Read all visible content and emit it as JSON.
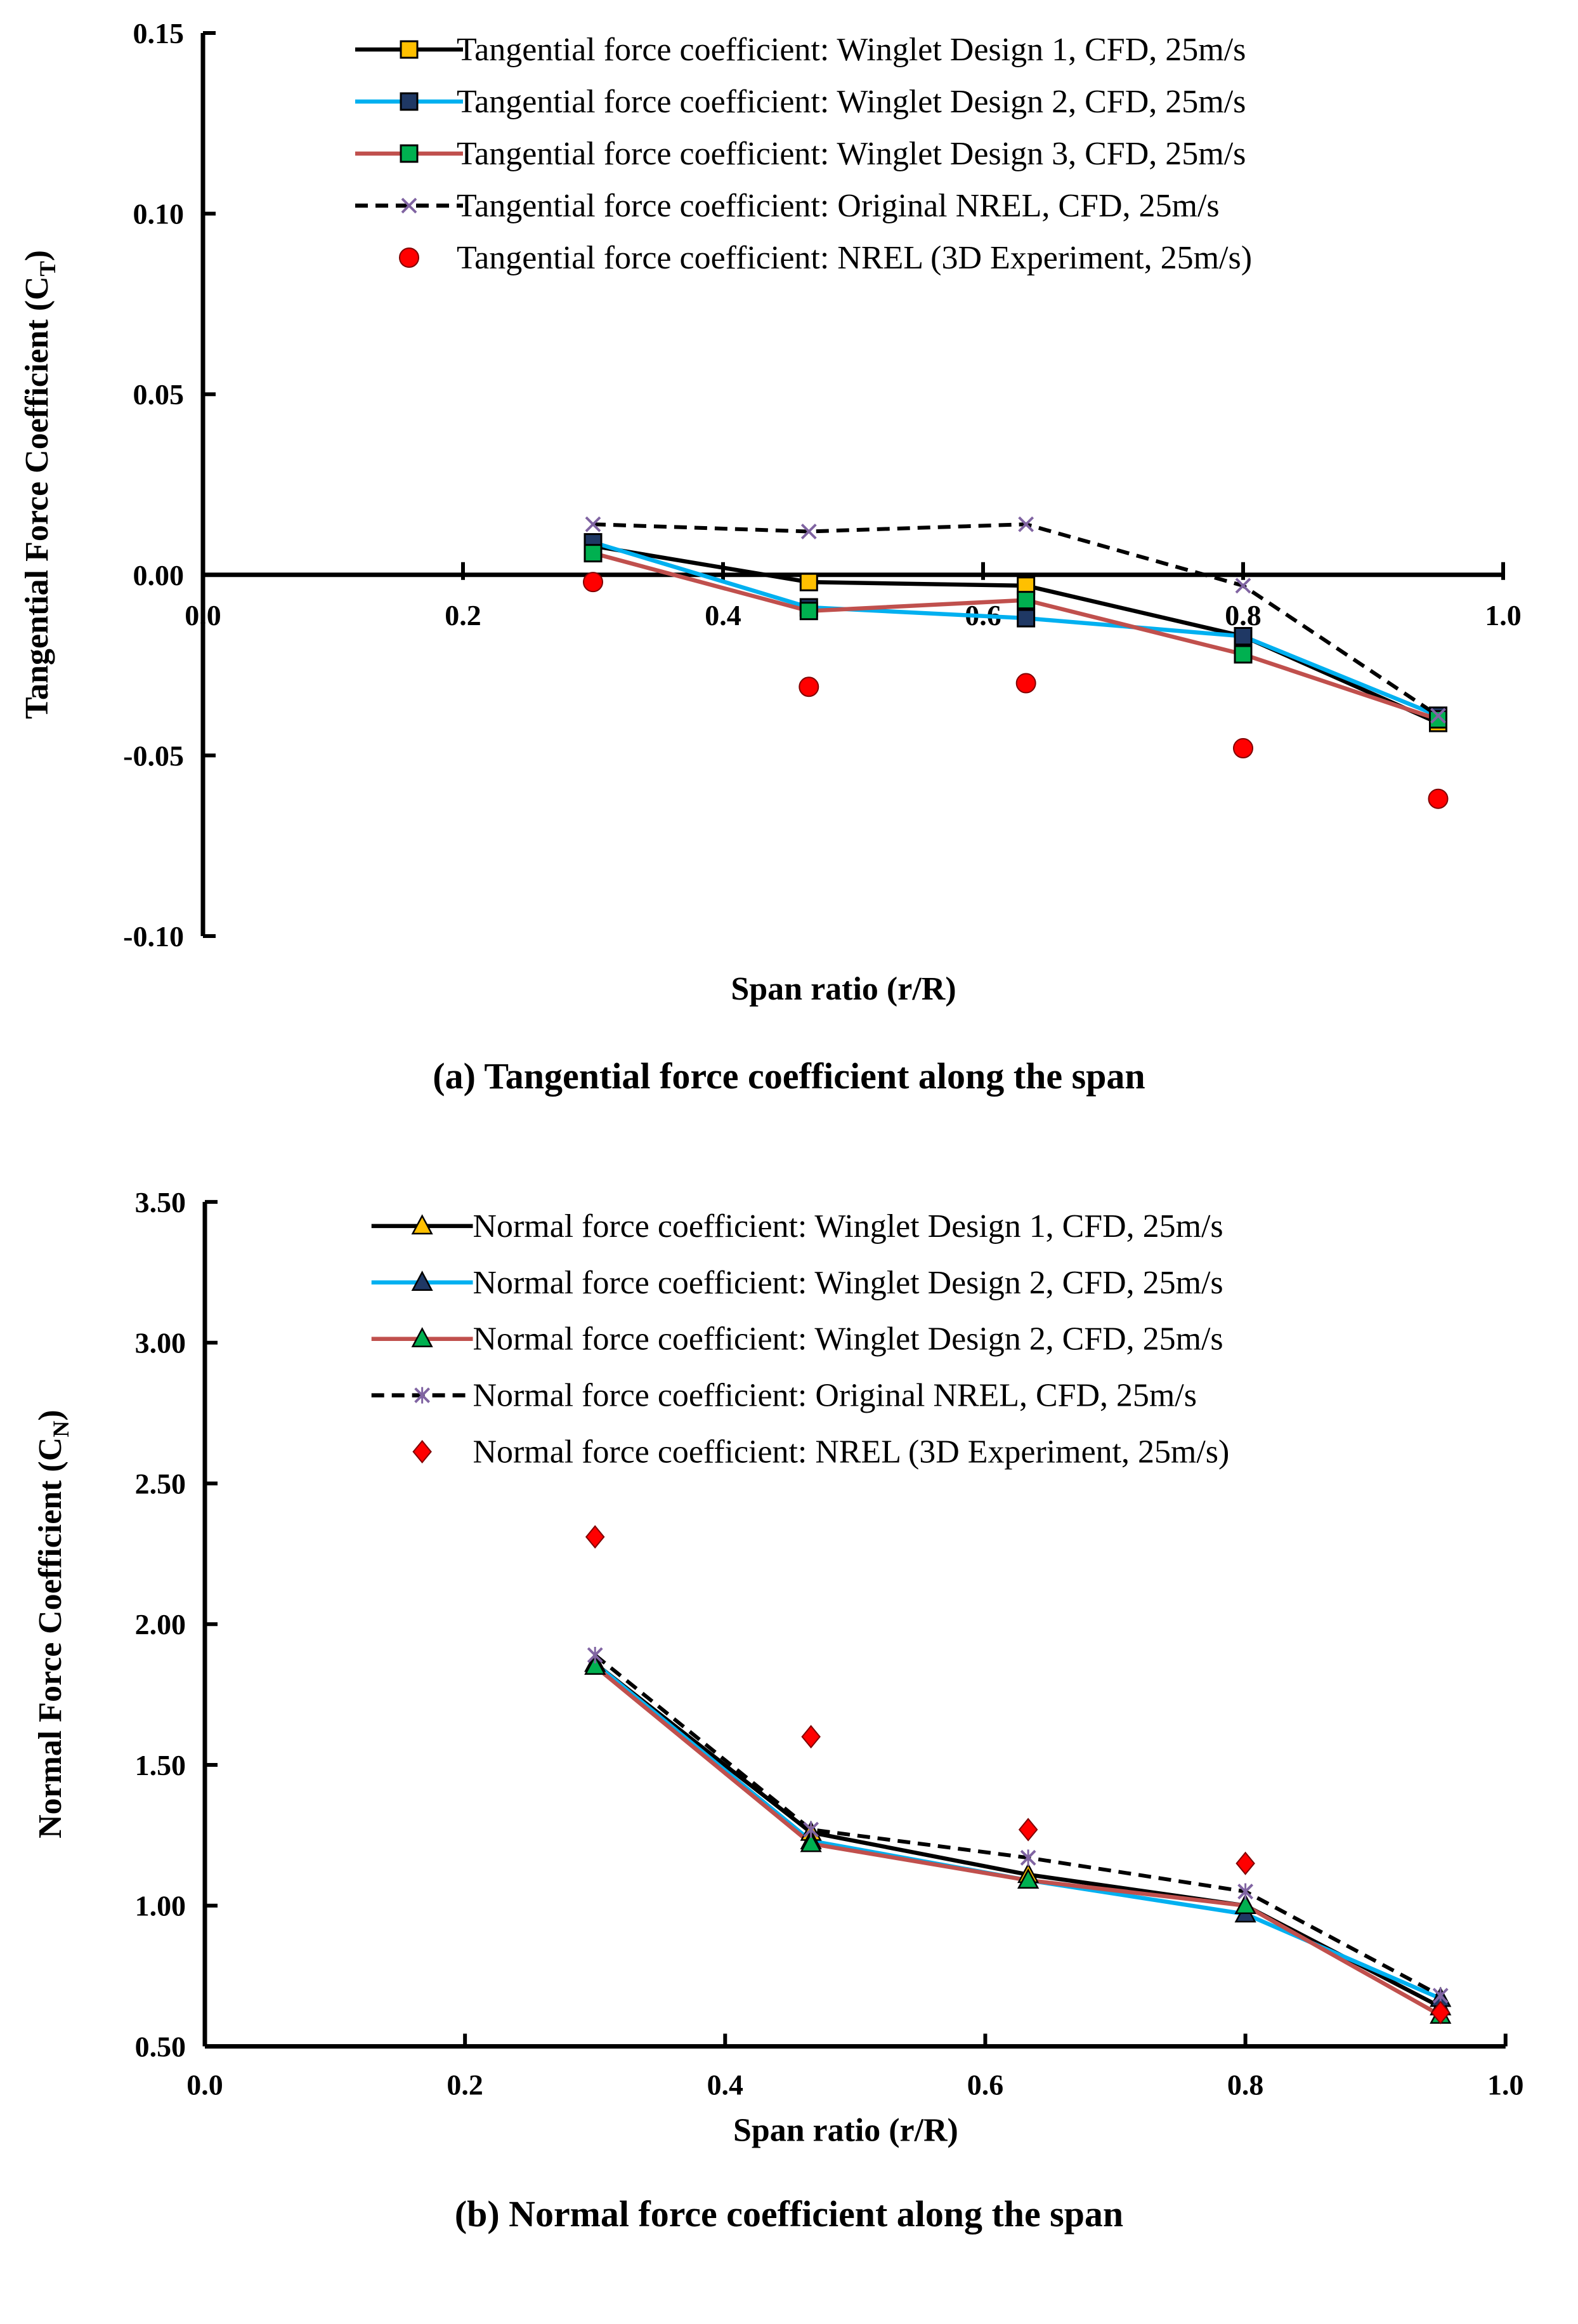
{
  "chart_data": [
    {
      "id": "a",
      "type": "line",
      "caption": "(a) Tangential force coefficient along the span",
      "xlabel": "Span ratio (r/R)",
      "ylabel": "Tangential Force Coefficient (C",
      "ylabel_sub": "T",
      "xlim": [
        0.0,
        1.0
      ],
      "ylim": [
        -0.1,
        0.15
      ],
      "x_ticks": [
        "0.0",
        "0.2",
        "0.4",
        "0.6",
        "0.8",
        "1.0"
      ],
      "y_ticks": [
        "0.15",
        "0.10",
        "0.05",
        "0.00",
        "-0.05",
        "-0.10"
      ],
      "legend_position": "top-right",
      "series": [
        {
          "name": "Tangential force coefficient: Winglet Design 1, CFD, 25m/s",
          "color": "#000000",
          "marker": "square",
          "marker_color": "#ffc000",
          "dashed": false,
          "x": [
            0.3,
            0.466,
            0.633,
            0.8,
            0.95
          ],
          "y": [
            0.008,
            -0.002,
            -0.003,
            -0.017,
            -0.041
          ]
        },
        {
          "name": "Tangential force coefficient: Winglet Design 2, CFD, 25m/s",
          "color": "#00b0f0",
          "marker": "square",
          "marker_color": "#1f3864",
          "dashed": false,
          "x": [
            0.3,
            0.466,
            0.633,
            0.8,
            0.95
          ],
          "y": [
            0.009,
            -0.009,
            -0.012,
            -0.017,
            -0.039
          ]
        },
        {
          "name": "Tangential force coefficient: Winglet Design 3, CFD, 25m/s",
          "color": "#c0504d",
          "marker": "square",
          "marker_color": "#00b050",
          "dashed": false,
          "x": [
            0.3,
            0.466,
            0.633,
            0.8,
            0.95
          ],
          "y": [
            0.006,
            -0.01,
            -0.007,
            -0.022,
            -0.04
          ]
        },
        {
          "name": "Tangential force coefficient: Original NREL, CFD, 25m/s",
          "color": "#000000",
          "marker": "x",
          "marker_color": "#8064a2",
          "dashed": true,
          "x": [
            0.3,
            0.466,
            0.633,
            0.8,
            0.95
          ],
          "y": [
            0.014,
            0.012,
            0.014,
            -0.003,
            -0.039
          ]
        },
        {
          "name": "Tangential force coefficient: NREL (3D Experiment, 25m/s)",
          "color": "none",
          "marker": "circle",
          "marker_color": "#ff0000",
          "dashed": false,
          "x": [
            0.3,
            0.466,
            0.633,
            0.8,
            0.95
          ],
          "y": [
            -0.002,
            -0.031,
            -0.03,
            -0.048,
            -0.062
          ]
        }
      ]
    },
    {
      "id": "b",
      "type": "line",
      "caption": "(b) Normal force coefficient along the span",
      "xlabel": "Span ratio (r/R)",
      "ylabel": "Normal Force Coefficient (C",
      "ylabel_sub": "N",
      "xlim": [
        0.0,
        1.0
      ],
      "ylim": [
        0.5,
        3.5
      ],
      "x_ticks": [
        "0.0",
        "0.2",
        "0.4",
        "0.6",
        "0.8",
        "1.0"
      ],
      "y_ticks": [
        "3.50",
        "3.00",
        "2.50",
        "2.00",
        "1.50",
        "1.00",
        "0.50"
      ],
      "legend_position": "top-right",
      "series": [
        {
          "name": "Normal force coefficient: Winglet Design 1, CFD, 25m/s",
          "color": "#000000",
          "marker": "triangle",
          "marker_color": "#ffc000",
          "dashed": false,
          "x": [
            0.3,
            0.466,
            0.633,
            0.8,
            0.95
          ],
          "y": [
            1.86,
            1.26,
            1.11,
            1.0,
            0.64
          ]
        },
        {
          "name": "Normal force coefficient: Winglet Design 2, CFD, 25m/s",
          "color": "#00b0f0",
          "marker": "triangle",
          "marker_color": "#1f3864",
          "dashed": false,
          "x": [
            0.3,
            0.466,
            0.633,
            0.8,
            0.95
          ],
          "y": [
            1.86,
            1.23,
            1.09,
            0.97,
            0.67
          ]
        },
        {
          "name": "Normal force coefficient: Winglet Design 2, CFD, 25m/s",
          "color": "#c0504d",
          "marker": "triangle",
          "marker_color": "#00b050",
          "dashed": false,
          "x": [
            0.3,
            0.466,
            0.633,
            0.8,
            0.95
          ],
          "y": [
            1.85,
            1.22,
            1.09,
            1.0,
            0.61
          ]
        },
        {
          "name": "Normal force coefficient: Original NREL, CFD, 25m/s",
          "color": "#000000",
          "marker": "star",
          "marker_color": "#8064a2",
          "dashed": true,
          "x": [
            0.3,
            0.466,
            0.633,
            0.8,
            0.95
          ],
          "y": [
            1.89,
            1.27,
            1.17,
            1.05,
            0.68
          ]
        },
        {
          "name": "Normal force coefficient: NREL (3D Experiment, 25m/s)",
          "color": "none",
          "marker": "diamond",
          "marker_color": "#ff0000",
          "dashed": false,
          "x": [
            0.3,
            0.466,
            0.633,
            0.8,
            0.95
          ],
          "y": [
            2.31,
            1.6,
            1.27,
            1.15,
            0.62
          ]
        }
      ]
    }
  ]
}
